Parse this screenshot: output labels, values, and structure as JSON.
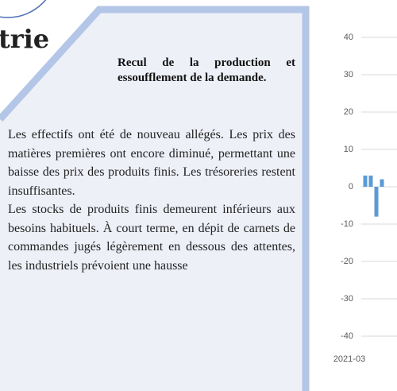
{
  "header": {
    "title": "trie"
  },
  "panel": {
    "heading": "Recul de la production et essoufflement de la demande.",
    "paragraphs": [
      "Les effectifs ont été de nouveau allégés. Les prix des matières premières ont encore diminué, permettant une baisse des prix des produits finis. Les trésoreries restent insuffisantes.",
      "Les stocks de produits finis demeurent inférieurs aux besoins habituels. À court terme, en dépit de carnets de commandes jugés légèrement en dessous des attentes, les industriels prévoient une hausse"
    ]
  },
  "chart_data": {
    "type": "bar",
    "categories": [
      "2021-03",
      null,
      null,
      null
    ],
    "values": [
      3,
      3,
      -8,
      2
    ],
    "color": "#5b9bd5",
    "ylim": [
      -40,
      40
    ],
    "yticks": [
      -40,
      -30,
      -20,
      -10,
      0,
      10,
      20,
      30,
      40
    ],
    "grid": true
  }
}
